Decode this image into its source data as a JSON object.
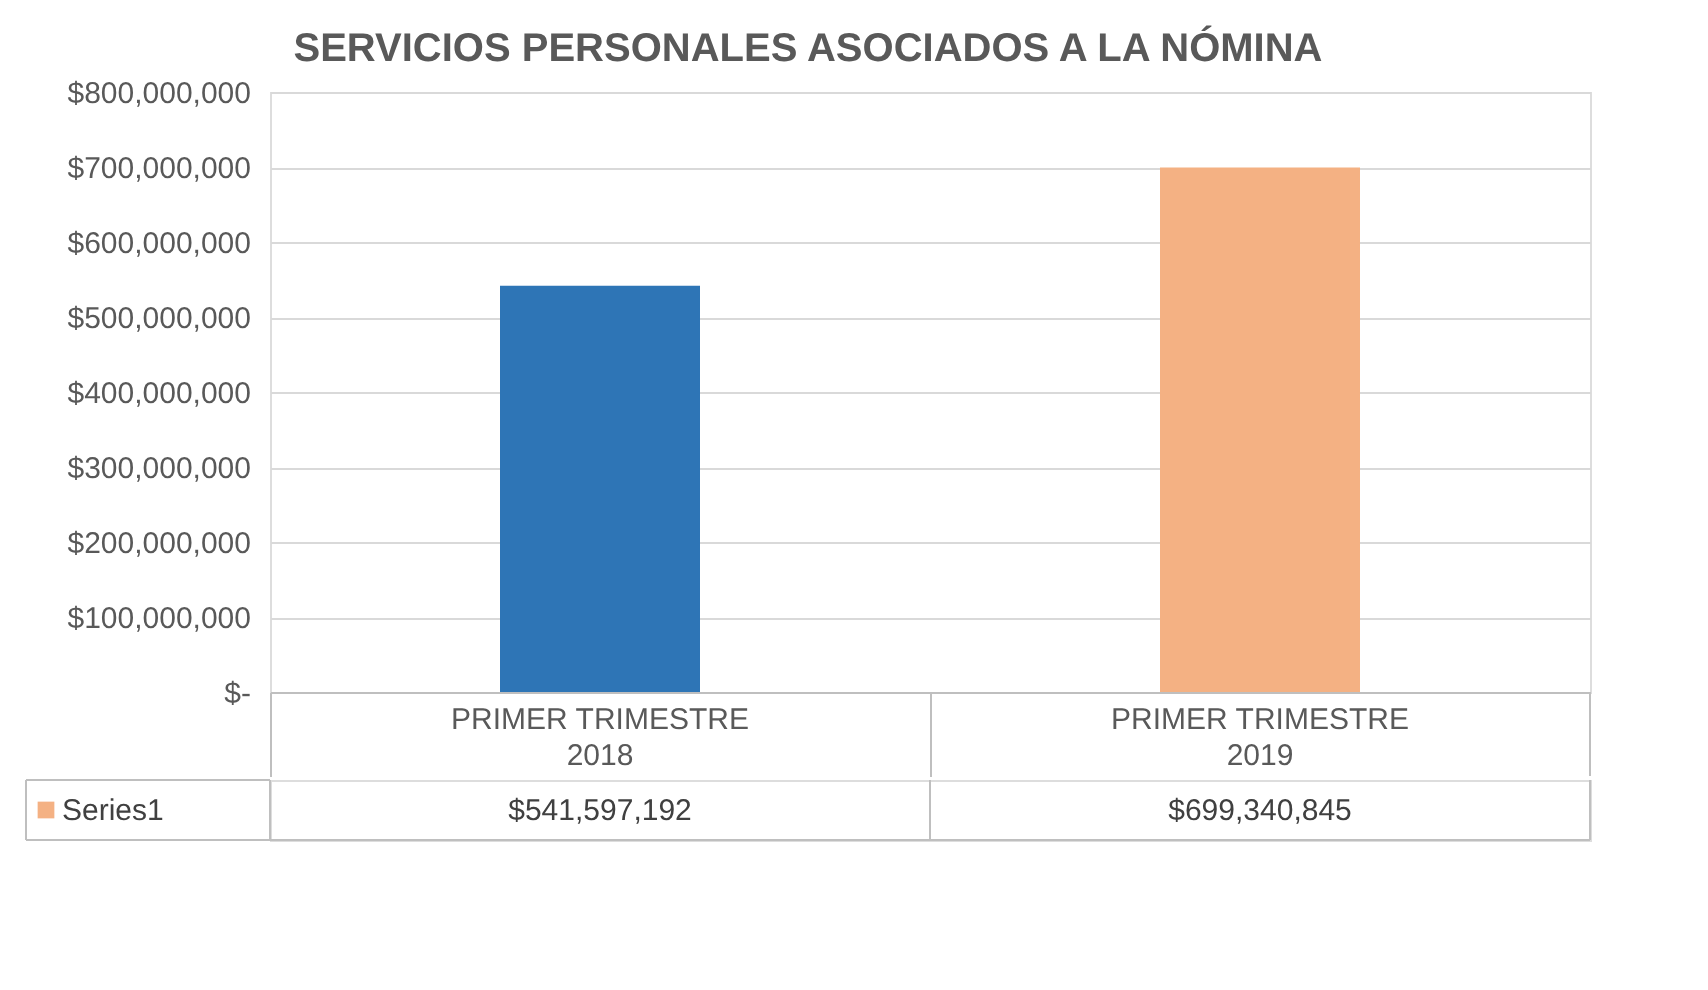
{
  "chart_data": {
    "type": "bar",
    "title": "SERVICIOS PERSONALES ASOCIADOS A LA NÓMINA",
    "categories": [
      "PRIMER TRIMESTRE 2018",
      "PRIMER TRIMESTRE 2019"
    ],
    "series": [
      {
        "name": "Series1",
        "color": "#f4b183",
        "colors": [
          "#2e75b6",
          "#f4b183"
        ],
        "values": [
          541597192,
          699340845
        ],
        "value_labels": [
          "$541,597,192",
          "$699,340,845"
        ]
      }
    ],
    "ylim": [
      0,
      800000000
    ],
    "yticks": [
      {
        "value": 0,
        "label": "$-"
      },
      {
        "value": 100000000,
        "label": "$100,000,000"
      },
      {
        "value": 200000000,
        "label": "$200,000,000"
      },
      {
        "value": 300000000,
        "label": "$300,000,000"
      },
      {
        "value": 400000000,
        "label": "$400,000,000"
      },
      {
        "value": 500000000,
        "label": "$500,000,000"
      },
      {
        "value": 600000000,
        "label": "$600,000,000"
      },
      {
        "value": 700000000,
        "label": "$700,000,000"
      },
      {
        "value": 800000000,
        "label": "$800,000,000"
      }
    ],
    "grid": "y",
    "legend": "bottom"
  }
}
